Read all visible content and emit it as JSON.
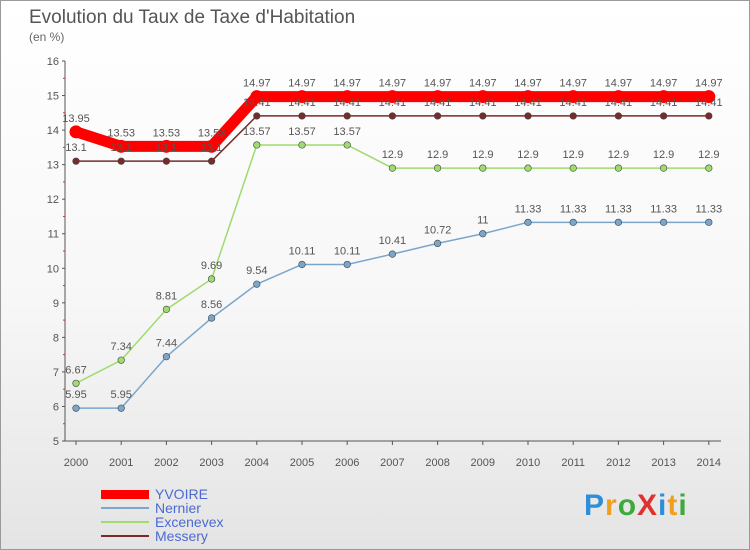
{
  "title": "Evolution du Taux de Taxe d'Habitation",
  "units_label": "(en %)",
  "logo": {
    "text": "ProXiti",
    "letter_colors": [
      "#2e8fd6",
      "#f0a020",
      "#3caa3c",
      "#e03030",
      "#2e8fd6",
      "#f0a020",
      "#3caa3c"
    ]
  },
  "chart_data": {
    "type": "line",
    "title": "Evolution du Taux de Taxe d'Habitation",
    "ylabel": "(en %)",
    "xlabel": "",
    "x": [
      "2000",
      "2001",
      "2002",
      "2003",
      "2004",
      "2005",
      "2006",
      "2007",
      "2008",
      "2009",
      "2010",
      "2011",
      "2012",
      "2013",
      "2014"
    ],
    "ylim": [
      5,
      16
    ],
    "yticks": [
      "5",
      "6",
      "7",
      "8",
      "9",
      "10",
      "11",
      "12",
      "13",
      "14",
      "15",
      "16"
    ],
    "grid": false,
    "legend_position": "bottom-left",
    "series": [
      {
        "name": "YVOIRE",
        "color": "#ff0000",
        "values": [
          13.95,
          13.53,
          13.53,
          13.53,
          14.97,
          14.97,
          14.97,
          14.97,
          14.97,
          14.97,
          14.97,
          14.97,
          14.97,
          14.97,
          14.97
        ],
        "labels": [
          "13.95",
          "13.53",
          "13.53",
          "13.53",
          "14.97",
          "14.97",
          "14.97",
          "14.97",
          "14.97",
          "14.97",
          "14.97",
          "14.97",
          "14.97",
          "14.97",
          "14.97"
        ]
      },
      {
        "name": "Nernier",
        "color": "#7ba6cc",
        "values": [
          5.95,
          5.95,
          7.44,
          8.56,
          9.54,
          10.11,
          10.11,
          10.41,
          10.72,
          11,
          11.33,
          11.33,
          11.33,
          11.33,
          11.33
        ],
        "labels": [
          "5.95",
          "5.95",
          "7.44",
          "8.56",
          "9.54",
          "10.11",
          "10.11",
          "10.41",
          "10.72",
          "11",
          "11.33",
          "11.33",
          "11.33",
          "11.33",
          "11.33"
        ]
      },
      {
        "name": "Excenevex",
        "color": "#9fdb6e",
        "values": [
          6.67,
          7.34,
          8.81,
          9.69,
          13.57,
          13.57,
          13.57,
          12.9,
          12.9,
          12.9,
          12.9,
          12.9,
          12.9,
          12.9,
          12.9
        ],
        "labels": [
          "6.67",
          "7.34",
          "8.81",
          "9.69",
          "13.57",
          "13.57",
          "13.57",
          "12.9",
          "12.9",
          "12.9",
          "12.9",
          "12.9",
          "12.9",
          "12.9",
          "12.9"
        ]
      },
      {
        "name": "Messery",
        "color": "#7a2a2a",
        "values": [
          13.1,
          13.1,
          13.1,
          13.1,
          14.41,
          14.41,
          14.41,
          14.41,
          14.41,
          14.41,
          14.41,
          14.41,
          14.41,
          14.41,
          14.41
        ],
        "labels": [
          "13.1",
          "13.1",
          "13.1",
          "13.1",
          "14.41",
          "14.41",
          "14.41",
          "14.41",
          "14.41",
          "14.41",
          "14.41",
          "14.41",
          "14.41",
          "14.41",
          "14.41"
        ]
      }
    ]
  }
}
